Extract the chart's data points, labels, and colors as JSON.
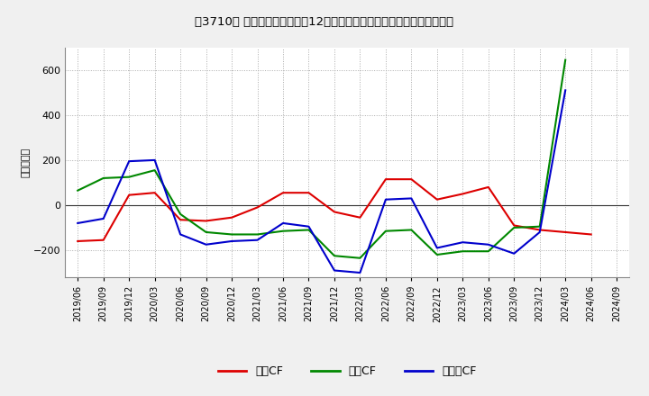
{
  "title": "［3710］ キャッシュフローの12か月移動合計の対前年同期増減額の推移",
  "ylabel": "（百万円）",
  "background_color": "#f0f0f0",
  "plot_bg_color": "#ffffff",
  "grid_color": "#aaaaaa",
  "ylim": [
    -320,
    700
  ],
  "yticks": [
    -200,
    0,
    200,
    400,
    600
  ],
  "x_labels": [
    "2019/06",
    "2019/09",
    "2019/12",
    "2020/03",
    "2020/06",
    "2020/09",
    "2020/12",
    "2021/03",
    "2021/06",
    "2021/09",
    "2021/12",
    "2022/03",
    "2022/06",
    "2022/09",
    "2022/12",
    "2023/03",
    "2023/06",
    "2023/09",
    "2023/12",
    "2024/03",
    "2024/06",
    "2024/09"
  ],
  "series": {
    "営業CF": {
      "color": "#dd0000",
      "values": [
        -160,
        -155,
        45,
        55,
        -65,
        -70,
        -55,
        -10,
        55,
        55,
        -30,
        -55,
        115,
        115,
        25,
        50,
        80,
        -90,
        -110,
        -120,
        -130,
        null
      ]
    },
    "投賃CF": {
      "color": "#008800",
      "values": [
        65,
        120,
        125,
        155,
        -40,
        -120,
        -130,
        -130,
        -115,
        -110,
        -225,
        -235,
        -115,
        -110,
        -220,
        -205,
        -205,
        -100,
        -95,
        645,
        null,
        null
      ]
    },
    "フリーCF": {
      "color": "#0000cc",
      "values": [
        -80,
        -60,
        195,
        200,
        -130,
        -175,
        -160,
        -155,
        -80,
        -95,
        -290,
        -300,
        25,
        30,
        -190,
        -165,
        -175,
        -215,
        -120,
        510,
        null,
        null
      ]
    }
  },
  "legend_entries": [
    "営業CF",
    "投賃CF",
    "フリーCF"
  ],
  "legend_colors": [
    "#dd0000",
    "#008800",
    "#0000cc"
  ]
}
